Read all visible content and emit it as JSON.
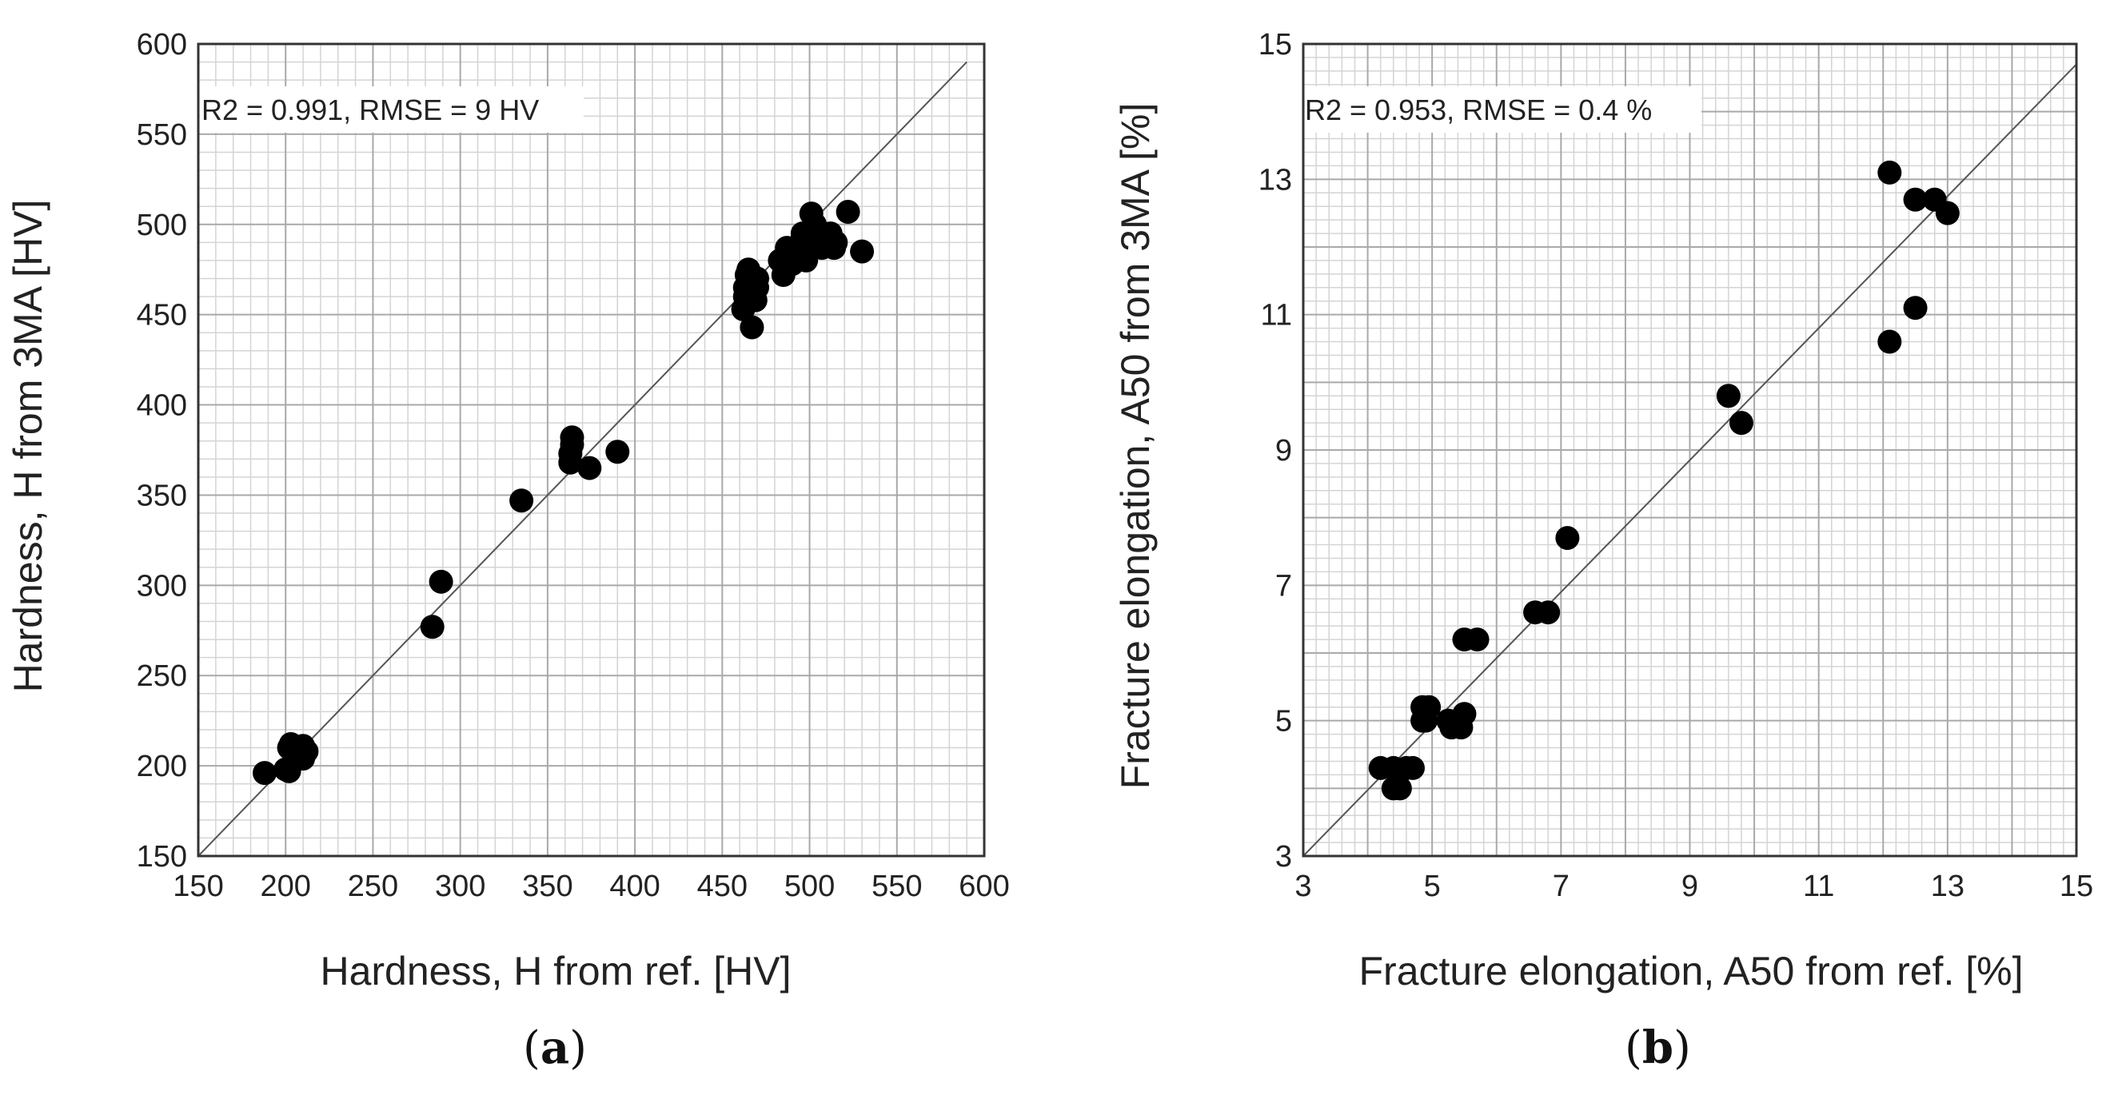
{
  "chart_data": [
    {
      "type": "scatter",
      "panel_label": "a",
      "xlabel": "Hardness, H from ref. [HV]",
      "ylabel": "Hardness, H from 3MA [HV]",
      "annotation": "R2 = 0.991, RMSE  = 9 HV",
      "xlim": [
        150,
        600
      ],
      "ylim": [
        150,
        600
      ],
      "major_step": 50,
      "minor_step": 10,
      "x_ticks": [
        "150",
        "200",
        "250",
        "300",
        "350",
        "400",
        "450",
        "500",
        "550",
        "600"
      ],
      "y_ticks": [
        "150",
        "200",
        "250",
        "300",
        "350",
        "400",
        "450",
        "500",
        "550",
        "600"
      ],
      "reference_line": {
        "from": [
          150,
          150
        ],
        "to": [
          590,
          590
        ]
      },
      "points": [
        [
          188,
          196
        ],
        [
          200,
          198
        ],
        [
          202,
          197
        ],
        [
          202,
          210
        ],
        [
          203,
          212
        ],
        [
          205,
          205
        ],
        [
          208,
          210
        ],
        [
          210,
          204
        ],
        [
          210,
          211
        ],
        [
          212,
          208
        ],
        [
          284,
          277
        ],
        [
          289,
          302
        ],
        [
          335,
          347
        ],
        [
          363,
          368
        ],
        [
          363,
          373
        ],
        [
          364,
          378
        ],
        [
          364,
          382
        ],
        [
          374,
          365
        ],
        [
          390,
          374
        ],
        [
          462,
          453
        ],
        [
          463,
          460
        ],
        [
          463,
          465
        ],
        [
          464,
          472
        ],
        [
          465,
          475
        ],
        [
          467,
          443
        ],
        [
          469,
          458
        ],
        [
          470,
          465
        ],
        [
          470,
          470
        ],
        [
          483,
          480
        ],
        [
          485,
          472
        ],
        [
          487,
          487
        ],
        [
          490,
          478
        ],
        [
          492,
          485
        ],
        [
          495,
          490
        ],
        [
          496,
          495
        ],
        [
          498,
          480
        ],
        [
          500,
          488
        ],
        [
          501,
          506
        ],
        [
          503,
          500
        ],
        [
          505,
          493
        ],
        [
          507,
          487
        ],
        [
          510,
          492
        ],
        [
          512,
          495
        ],
        [
          514,
          487
        ],
        [
          515,
          490
        ],
        [
          522,
          507
        ],
        [
          530,
          485
        ]
      ]
    },
    {
      "type": "scatter",
      "panel_label": "b",
      "xlabel": "Fracture elongation, A50 from ref. [%]",
      "ylabel": "Fracture elongation, A50 from 3MA [%]",
      "annotation": "R2 = 0.953, RMSE  = 0.4 %",
      "xlim": [
        3,
        15
      ],
      "ylim": [
        3,
        15
      ],
      "major_step": 1,
      "minor_step": 0.2,
      "x_ticks": [
        "3",
        "5",
        "7",
        "9",
        "11",
        "13",
        "15"
      ],
      "y_ticks": [
        "3",
        "5",
        "7",
        "9",
        "11",
        "13",
        "15"
      ],
      "reference_line": {
        "from": [
          3,
          3
        ],
        "to": [
          15,
          14.7
        ]
      },
      "points": [
        [
          4.2,
          4.3
        ],
        [
          4.4,
          4.0
        ],
        [
          4.4,
          4.3
        ],
        [
          4.5,
          4.0
        ],
        [
          4.6,
          4.3
        ],
        [
          4.7,
          4.3
        ],
        [
          4.85,
          5.0
        ],
        [
          4.85,
          5.2
        ],
        [
          4.9,
          5.0
        ],
        [
          4.95,
          5.2
        ],
        [
          5.25,
          5.0
        ],
        [
          5.3,
          4.9
        ],
        [
          5.4,
          5.0
        ],
        [
          5.45,
          4.9
        ],
        [
          5.5,
          5.1
        ],
        [
          5.5,
          6.2
        ],
        [
          5.7,
          6.2
        ],
        [
          6.6,
          6.6
        ],
        [
          6.8,
          6.6
        ],
        [
          7.1,
          7.7
        ],
        [
          9.6,
          9.8
        ],
        [
          9.8,
          9.4
        ],
        [
          12.1,
          13.1
        ],
        [
          12.1,
          10.6
        ],
        [
          12.5,
          12.7
        ],
        [
          12.5,
          11.1
        ],
        [
          12.8,
          12.7
        ],
        [
          13.0,
          12.5
        ]
      ]
    }
  ],
  "captions": {
    "a": {
      "open": "(",
      "letter": "a",
      "close": ")"
    },
    "b": {
      "open": "(",
      "letter": "b",
      "close": ")"
    }
  }
}
